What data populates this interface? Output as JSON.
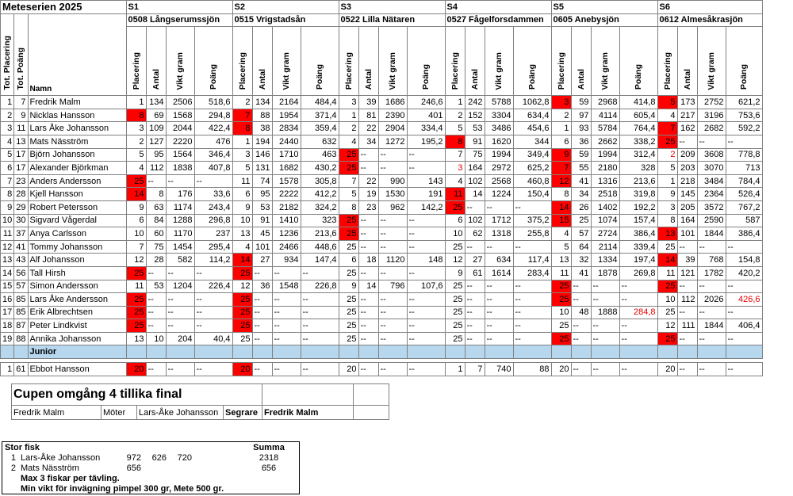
{
  "title": "Meteserien 2025",
  "stages": [
    {
      "code": "S1",
      "name": "0508 Långserumssjön"
    },
    {
      "code": "S2",
      "name": "0515 Vrigstadsån"
    },
    {
      "code": "S3",
      "name": "0522 Lilla Nätaren"
    },
    {
      "code": "S4",
      "name": "0527 Fågelforsdammen"
    },
    {
      "code": "S5",
      "name": "0605 Anebysjön"
    },
    {
      "code": "S6",
      "name": "0612 Almesåkrasjön"
    }
  ],
  "col_headers": {
    "tot_placering": "Tot. Placering",
    "tot_poang": "Tot. Poäng",
    "namn": "Namn",
    "placering": "Placering",
    "antal": "Antal",
    "vikt": "Vikt gram",
    "poang": "Poäng"
  },
  "rows": [
    {
      "pl": "1",
      "tp": "7",
      "name": "Fredrik Malm",
      "s": [
        [
          "1",
          "134",
          "2506",
          "518,6"
        ],
        [
          "2",
          "134",
          "2164",
          "484,4"
        ],
        [
          "3",
          "39",
          "1686",
          "246,6"
        ],
        [
          "1",
          "242",
          "5788",
          "1062,8"
        ],
        [
          "3",
          "59",
          "2968",
          "414,8"
        ],
        [
          "5",
          "173",
          "2752",
          "621,2"
        ]
      ]
    },
    {
      "pl": "2",
      "tp": "9",
      "name": "Nicklas Hansson",
      "s": [
        [
          "8",
          "69",
          "1568",
          "294,8"
        ],
        [
          "7",
          "88",
          "1954",
          "371,4"
        ],
        [
          "1",
          "81",
          "2390",
          "401"
        ],
        [
          "2",
          "152",
          "3304",
          "634,4"
        ],
        [
          "2",
          "97",
          "4114",
          "605,4"
        ],
        [
          "4",
          "217",
          "3196",
          "753,6"
        ]
      ]
    },
    {
      "pl": "3",
      "tp": "11",
      "name": "Lars Åke Johansson",
      "s": [
        [
          "3",
          "109",
          "2044",
          "422,4"
        ],
        [
          "8",
          "38",
          "2834",
          "359,4"
        ],
        [
          "2",
          "22",
          "2904",
          "334,4"
        ],
        [
          "5",
          "53",
          "3486",
          "454,6"
        ],
        [
          "1",
          "93",
          "5784",
          "764,4"
        ],
        [
          "7",
          "162",
          "2682",
          "592,2"
        ]
      ]
    },
    {
      "pl": "4",
      "tp": "13",
      "name": "Mats Näsström",
      "s": [
        [
          "2",
          "127",
          "2220",
          "476"
        ],
        [
          "1",
          "194",
          "2440",
          "632"
        ],
        [
          "4",
          "34",
          "1272",
          "195,2"
        ],
        [
          "8",
          "91",
          "1620",
          "344"
        ],
        [
          "6",
          "36",
          "2662",
          "338,2"
        ],
        [
          "25",
          "--",
          "--",
          "--"
        ]
      ]
    },
    {
      "pl": "5",
      "tp": "17",
      "name": "Björn Johansson",
      "s": [
        [
          "5",
          "95",
          "1564",
          "346,4"
        ],
        [
          "3",
          "146",
          "1710",
          "463"
        ],
        [
          "25",
          "--",
          "--",
          "--"
        ],
        [
          "7",
          "75",
          "1994",
          "349,4"
        ],
        [
          "9",
          "59",
          "1994",
          "312,4"
        ],
        [
          "2",
          "209",
          "3608",
          "778,8"
        ]
      ]
    },
    {
      "pl": "6",
      "tp": "17",
      "name": "Alexander Björkman",
      "s": [
        [
          "4",
          "112",
          "1838",
          "407,8"
        ],
        [
          "5",
          "131",
          "1682",
          "430,2"
        ],
        [
          "25",
          "--",
          "--",
          "--"
        ],
        [
          "3",
          "164",
          "2972",
          "625,2"
        ],
        [
          "7",
          "55",
          "2180",
          "328"
        ],
        [
          "5",
          "203",
          "3070",
          "713"
        ]
      ]
    },
    {
      "pl": "7",
      "tp": "23",
      "name": "Anders Andersson",
      "s": [
        [
          "25",
          "--",
          "--",
          "--"
        ],
        [
          "11",
          "74",
          "1578",
          "305,8"
        ],
        [
          "7",
          "22",
          "990",
          "143"
        ],
        [
          "4",
          "102",
          "2568",
          "460,8"
        ],
        [
          "12",
          "41",
          "1316",
          "213,6"
        ],
        [
          "1",
          "218",
          "3484",
          "784,4"
        ]
      ]
    },
    {
      "pl": "8",
      "tp": "28",
      "name": "Kjell Hansson",
      "s": [
        [
          "14",
          "8",
          "176",
          "33,6"
        ],
        [
          "6",
          "95",
          "2222",
          "412,2"
        ],
        [
          "5",
          "19",
          "1530",
          "191"
        ],
        [
          "11",
          "14",
          "1224",
          "150,4"
        ],
        [
          "8",
          "34",
          "2518",
          "319,8"
        ],
        [
          "9",
          "145",
          "2364",
          "526,4"
        ]
      ]
    },
    {
      "pl": "9",
      "tp": "29",
      "name": "Robert Petersson",
      "s": [
        [
          "9",
          "63",
          "1174",
          "243,4"
        ],
        [
          "9",
          "53",
          "2182",
          "324,2"
        ],
        [
          "8",
          "23",
          "962",
          "142,2"
        ],
        [
          "25",
          "--",
          "--",
          "--"
        ],
        [
          "14",
          "26",
          "1402",
          "192,2"
        ],
        [
          "3",
          "205",
          "3572",
          "767,2"
        ]
      ]
    },
    {
      "pl": "10",
      "tp": "30",
      "name": "Sigvard Vågerdal",
      "s": [
        [
          "6",
          "84",
          "1288",
          "296,8"
        ],
        [
          "10",
          "91",
          "1410",
          "323"
        ],
        [
          "25",
          "--",
          "--",
          "--"
        ],
        [
          "6",
          "102",
          "1712",
          "375,2"
        ],
        [
          "15",
          "25",
          "1074",
          "157,4"
        ],
        [
          "8",
          "164",
          "2590",
          "587"
        ]
      ]
    },
    {
      "pl": "11",
      "tp": "37",
      "name": "Anya Carlsson",
      "s": [
        [
          "10",
          "60",
          "1170",
          "237"
        ],
        [
          "13",
          "45",
          "1236",
          "213,6"
        ],
        [
          "25",
          "--",
          "--",
          "--"
        ],
        [
          "10",
          "62",
          "1318",
          "255,8"
        ],
        [
          "4",
          "57",
          "2724",
          "386,4"
        ],
        [
          "13",
          "101",
          "1844",
          "386,4"
        ]
      ]
    },
    {
      "pl": "12",
      "tp": "41",
      "name": "Tommy Johansson",
      "s": [
        [
          "7",
          "75",
          "1454",
          "295,4"
        ],
        [
          "4",
          "101",
          "2466",
          "448,6"
        ],
        [
          "25",
          "--",
          "--",
          "--"
        ],
        [
          "25",
          "--",
          "--",
          "--"
        ],
        [
          "5",
          "64",
          "2114",
          "339,4"
        ],
        [
          "25",
          "--",
          "--",
          "--"
        ]
      ]
    },
    {
      "pl": "13",
      "tp": "43",
      "name": "Alf Johansson",
      "s": [
        [
          "12",
          "28",
          "582",
          "114,2"
        ],
        [
          "14",
          "27",
          "934",
          "147,4"
        ],
        [
          "6",
          "18",
          "1120",
          "148"
        ],
        [
          "12",
          "27",
          "634",
          "117,4"
        ],
        [
          "13",
          "32",
          "1334",
          "197,4"
        ],
        [
          "14",
          "39",
          "768",
          "154,8"
        ]
      ]
    },
    {
      "pl": "14",
      "tp": "56",
      "name": "Tall Hirsh",
      "s": [
        [
          "25",
          "--",
          "--",
          "--"
        ],
        [
          "25",
          "--",
          "--",
          "--"
        ],
        [
          "25",
          "--",
          "--",
          "--"
        ],
        [
          "9",
          "61",
          "1614",
          "283,4"
        ],
        [
          "11",
          "41",
          "1878",
          "269,8"
        ],
        [
          "11",
          "121",
          "1782",
          "420,2"
        ]
      ]
    },
    {
      "pl": "15",
      "tp": "57",
      "name": "Simon Andersson",
      "s": [
        [
          "11",
          "53",
          "1204",
          "226,4"
        ],
        [
          "12",
          "36",
          "1548",
          "226,8"
        ],
        [
          "9",
          "14",
          "796",
          "107,6"
        ],
        [
          "25",
          "--",
          "--",
          "--"
        ],
        [
          "25",
          "--",
          "--",
          "--"
        ],
        [
          "25",
          "--",
          "--",
          "--"
        ]
      ]
    },
    {
      "pl": "16",
      "tp": "85",
      "name": "Lars Åke Andersson",
      "s": [
        [
          "25",
          "--",
          "--",
          "--"
        ],
        [
          "25",
          "--",
          "--",
          "--"
        ],
        [
          "25",
          "--",
          "--",
          "--"
        ],
        [
          "25",
          "--",
          "--",
          "--"
        ],
        [
          "25",
          "--",
          "--",
          "--"
        ],
        [
          "10",
          "112",
          "2026",
          "426,6"
        ]
      ]
    },
    {
      "pl": "17",
      "tp": "85",
      "name": "Erik Albrechtsen",
      "s": [
        [
          "25",
          "--",
          "--",
          "--"
        ],
        [
          "25",
          "--",
          "--",
          "--"
        ],
        [
          "25",
          "--",
          "--",
          "--"
        ],
        [
          "25",
          "--",
          "--",
          "--"
        ],
        [
          "10",
          "48",
          "1888",
          "284,8"
        ],
        [
          "25",
          "--",
          "--",
          "--"
        ]
      ]
    },
    {
      "pl": "18",
      "tp": "87",
      "name": "Peter Lindkvist",
      "s": [
        [
          "25",
          "--",
          "--",
          "--"
        ],
        [
          "25",
          "--",
          "--",
          "--"
        ],
        [
          "25",
          "--",
          "--",
          "--"
        ],
        [
          "25",
          "--",
          "--",
          "--"
        ],
        [
          "25",
          "--",
          "--",
          "--"
        ],
        [
          "12",
          "111",
          "1844",
          "406,4"
        ]
      ]
    },
    {
      "pl": "19",
      "tp": "88",
      "name": "Annika Johansson",
      "s": [
        [
          "13",
          "10",
          "204",
          "40,4"
        ],
        [
          "25",
          "--",
          "--",
          "--"
        ],
        [
          "25",
          "--",
          "--",
          "--"
        ],
        [
          "25",
          "--",
          "--",
          "--"
        ],
        [
          "25",
          "--",
          "--",
          "--"
        ],
        [
          "25",
          "--",
          "--",
          "--"
        ]
      ]
    }
  ],
  "junior_label": "Junior",
  "junior_rows": [
    {
      "pl": "1",
      "tp": "61",
      "name": "Ebbot Hansson",
      "s": [
        [
          "20",
          "--",
          "--",
          "--"
        ],
        [
          "20",
          "--",
          "--",
          "--"
        ],
        [
          "20",
          "--",
          "--",
          "--"
        ],
        [
          "1",
          "7",
          "740",
          "88"
        ],
        [
          "20",
          "--",
          "--",
          "--"
        ],
        [
          "20",
          "--",
          "--",
          "--"
        ]
      ]
    }
  ],
  "cup": {
    "title": "Cupen omgång 4 tillika final",
    "player1": "Fredrik Malm",
    "vs_label": "Möter",
    "player2": "Lars-Åke Johansson",
    "winner_label": "Segrare",
    "winner": "Fredrik Malm"
  },
  "big_fish": {
    "title": "Stor fisk",
    "sum_label": "Summa",
    "rows": [
      {
        "rank": "1",
        "name": "Lars-Åke Johansson",
        "w1": "972",
        "w2": "626",
        "w3": "720",
        "sum": "2318"
      },
      {
        "rank": "2",
        "name": "Mats Näsström",
        "w1": "656",
        "w2": "",
        "w3": "",
        "sum": "656"
      }
    ],
    "note1": "Max 3 fiskar per tävling.",
    "note2": "Min vikt för invägning pimpel 300 gr, Mete 500 gr."
  },
  "highlight_color": "#ff0000",
  "junior_color": "#b7d7ee"
}
